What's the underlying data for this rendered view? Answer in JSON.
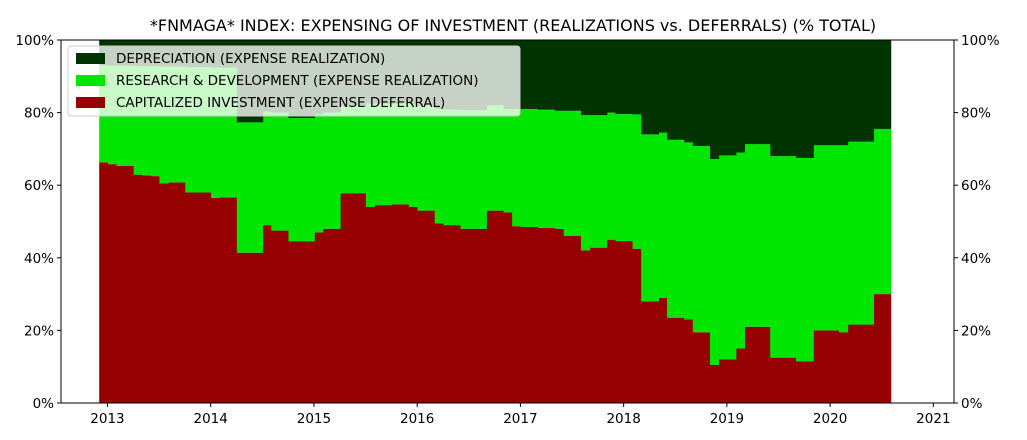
{
  "chart_data": {
    "type": "area",
    "title": "*FNMAGA* INDEX: EXPENSING OF INVESTMENT (REALIZATIONS vs. DEFERRALS) (% TOTAL)",
    "stacking": "stacked-step",
    "x_start": 2012.92,
    "x_step": 0.08333,
    "xlim": [
      2012.55,
      2021.2
    ],
    "ylim": [
      0,
      100
    ],
    "x_ticks": [
      "2013",
      "2014",
      "2015",
      "2016",
      "2017",
      "2018",
      "2019",
      "2020",
      "2021"
    ],
    "y_ticks_left": [
      "0%",
      "20%",
      "40%",
      "60%",
      "80%",
      "100%"
    ],
    "y_ticks_right": [
      "0%",
      "20%",
      "40%",
      "60%",
      "80%",
      "100%"
    ],
    "legend_position": "upper-left",
    "series": [
      {
        "name": "CAPITALIZED INVESTMENT (EXPENSE DEFERRAL)",
        "color": "#960000",
        "values": [
          66.3,
          65.8,
          65.3,
          65.3,
          62.9,
          62.7,
          62.5,
          60.5,
          60.8,
          60.8,
          58.0,
          58.0,
          58.0,
          56.5,
          56.6,
          56.6,
          41.4,
          41.4,
          41.4,
          49.0,
          47.5,
          47.5,
          44.5,
          44.5,
          44.5,
          47.0,
          48.0,
          48.0,
          57.8,
          57.8,
          57.8,
          54.0,
          54.5,
          54.5,
          54.7,
          54.7,
          54.0,
          53.0,
          53.0,
          49.5,
          49.0,
          49.0,
          48.0,
          48.0,
          48.0,
          53.0,
          53.0,
          52.5,
          48.7,
          48.5,
          48.5,
          48.2,
          48.2,
          48.0,
          46.0,
          46.0,
          42.0,
          42.8,
          42.8,
          45.0,
          44.6,
          44.6,
          42.5,
          28.0,
          28.0,
          29.0,
          23.5,
          23.5,
          23.0,
          19.5,
          19.5,
          10.5,
          12.0,
          12.0,
          15.0,
          21.0,
          21.0,
          21.0,
          12.5,
          12.5,
          12.5,
          11.5,
          11.5,
          20.0,
          20.0,
          20.0,
          19.5,
          21.6,
          21.6,
          21.6,
          30.0,
          30.0
        ]
      },
      {
        "name": "RESEARCH & DEVELOPMENT (EXPENSE REALIZATION)",
        "color": "#00e600",
        "values": [
          26.7,
          27.1,
          27.6,
          27.6,
          29.9,
          30.1,
          30.3,
          32.2,
          31.9,
          31.9,
          34.5,
          34.5,
          34.5,
          35.9,
          35.8,
          35.8,
          35.9,
          35.9,
          35.9,
          31.3,
          32.5,
          32.5,
          34.0,
          34.0,
          34.0,
          32.5,
          32.0,
          32.0,
          24.0,
          24.0,
          24.0,
          28.5,
          28.0,
          28.0,
          27.8,
          27.8,
          28.2,
          29.0,
          29.0,
          31.5,
          31.8,
          31.8,
          32.7,
          32.7,
          32.7,
          29.0,
          29.0,
          28.5,
          32.3,
          32.5,
          32.5,
          32.6,
          32.6,
          32.5,
          34.5,
          34.5,
          37.3,
          36.5,
          36.5,
          35.0,
          35.0,
          35.0,
          37.0,
          46.0,
          46.0,
          45.5,
          49.0,
          49.0,
          48.8,
          51.3,
          51.3,
          56.7,
          56.2,
          56.2,
          54.0,
          50.3,
          50.3,
          50.3,
          55.5,
          55.5,
          55.5,
          56.0,
          56.0,
          51.0,
          51.0,
          51.0,
          51.5,
          50.4,
          50.4,
          50.4,
          45.5,
          45.5
        ]
      },
      {
        "name": "DEPRECIATION (EXPENSE REALIZATION)",
        "color": "#003300",
        "values": [
          7.0,
          7.1,
          7.1,
          7.1,
          7.2,
          7.2,
          7.2,
          7.3,
          7.3,
          7.3,
          7.5,
          7.5,
          7.5,
          7.6,
          7.6,
          7.6,
          22.7,
          22.7,
          22.7,
          19.7,
          20.0,
          20.0,
          21.5,
          21.5,
          21.5,
          20.5,
          20.0,
          20.0,
          18.2,
          18.2,
          18.2,
          17.5,
          17.5,
          17.5,
          17.5,
          17.5,
          17.8,
          18.0,
          18.0,
          19.0,
          19.2,
          19.2,
          19.3,
          19.3,
          19.3,
          18.0,
          18.0,
          19.0,
          19.0,
          19.0,
          19.0,
          19.2,
          19.2,
          19.5,
          19.5,
          19.5,
          20.7,
          20.7,
          20.7,
          20.0,
          20.4,
          20.4,
          20.5,
          26.0,
          26.0,
          25.5,
          27.5,
          27.5,
          28.2,
          29.2,
          29.2,
          32.8,
          31.8,
          31.8,
          31.0,
          28.7,
          28.7,
          28.7,
          32.0,
          32.0,
          32.0,
          32.5,
          32.5,
          29.0,
          29.0,
          29.0,
          29.0,
          28.0,
          28.0,
          28.0,
          24.5,
          24.5
        ]
      }
    ]
  }
}
